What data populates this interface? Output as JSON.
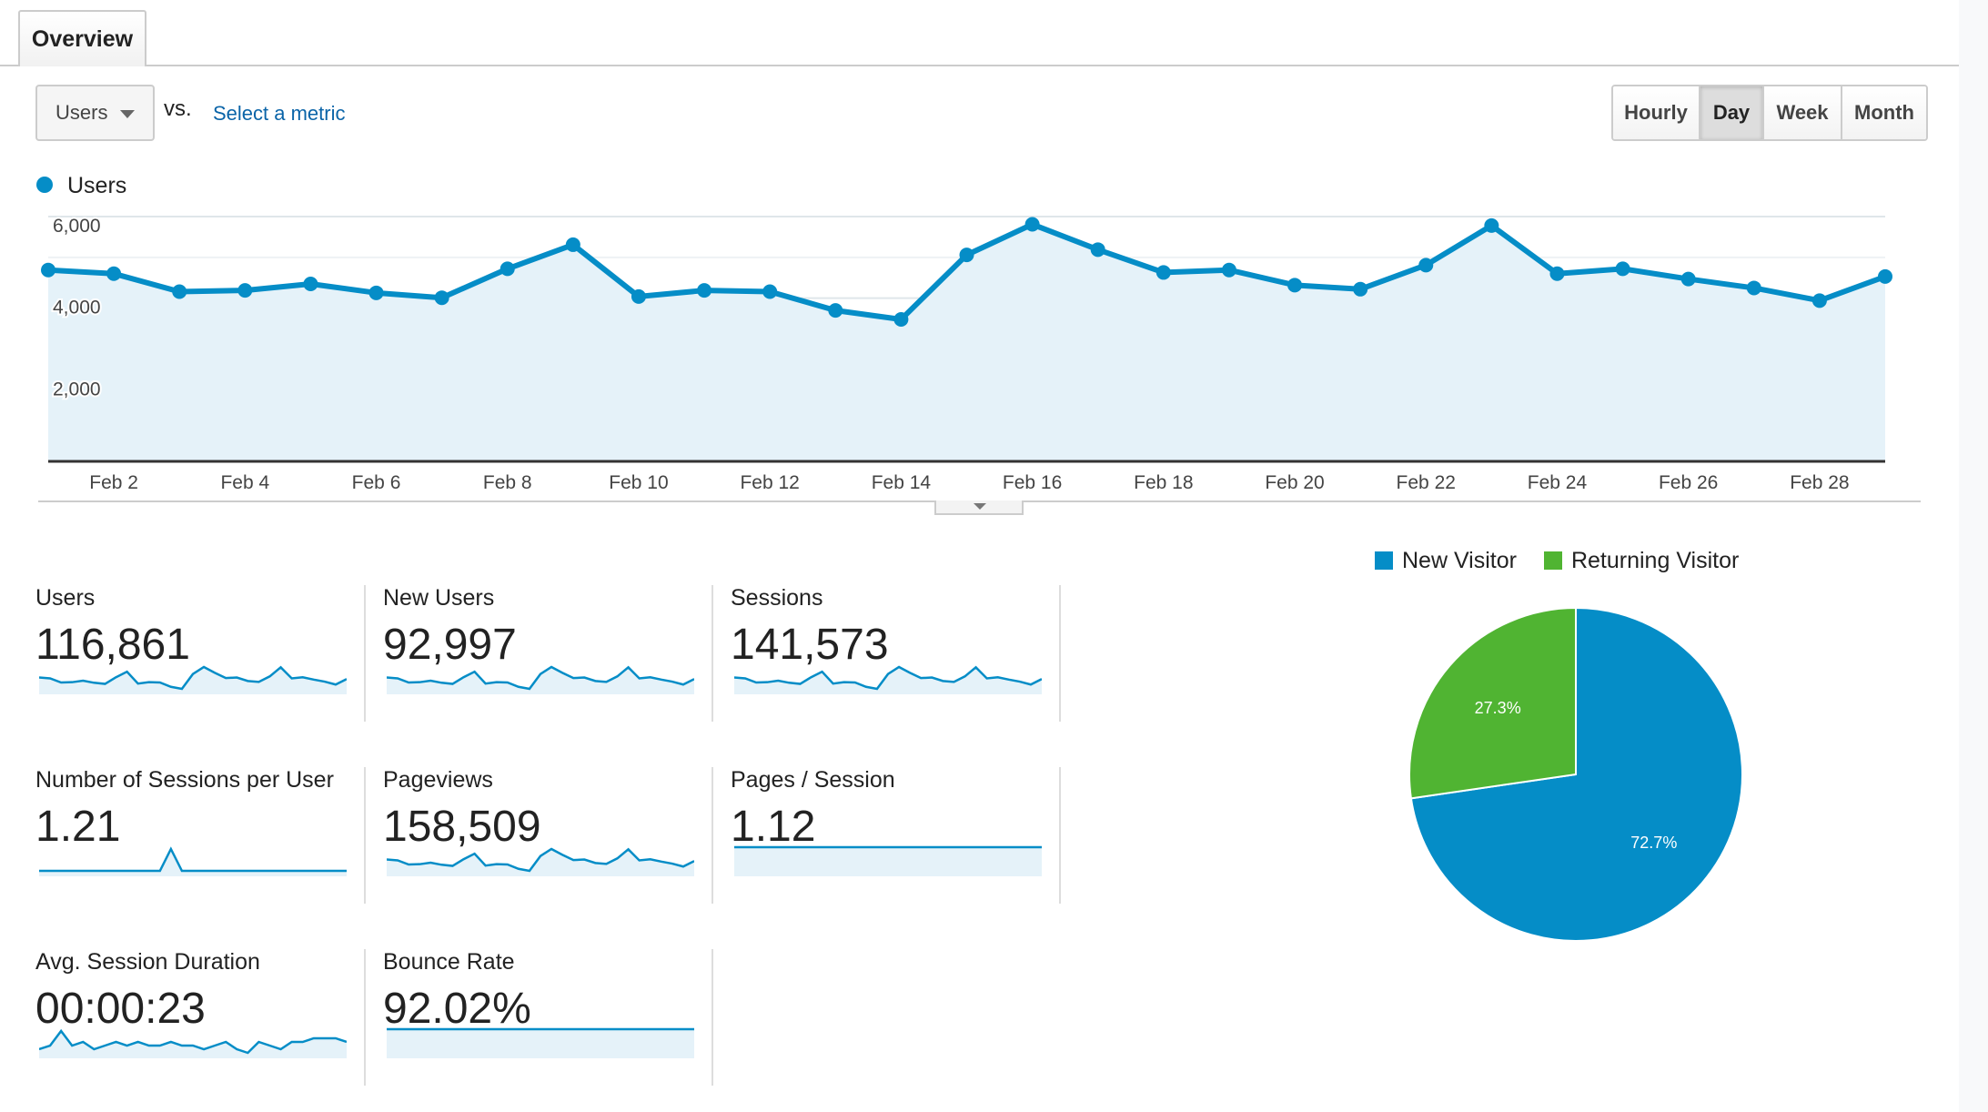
{
  "tabs": [
    {
      "label": "Overview",
      "active": true
    }
  ],
  "toolbar": {
    "metric_select": "Users",
    "vs_label": "vs.",
    "compare_link": "Select a metric",
    "granularity": [
      {
        "label": "Hourly",
        "active": false
      },
      {
        "label": "Day",
        "active": true
      },
      {
        "label": "Week",
        "active": false
      },
      {
        "label": "Month",
        "active": false
      }
    ]
  },
  "colors": {
    "primary": "#058dc7",
    "fill": "#e5f2f9",
    "secondary": "#50b432"
  },
  "chart_data": [
    {
      "type": "area",
      "legend": "Users",
      "series": [
        {
          "name": "Users",
          "values": [
            4690,
            4600,
            4160,
            4190,
            4350,
            4130,
            4010,
            4720,
            5310,
            4040,
            4190,
            4160,
            3700,
            3480,
            5060,
            5810,
            5190,
            4630,
            4690,
            4320,
            4220,
            4810,
            5780,
            4600,
            4720,
            4470,
            4250,
            3940,
            4530
          ]
        }
      ],
      "x": [
        "Feb 1",
        "Feb 2",
        "Feb 3",
        "Feb 4",
        "Feb 5",
        "Feb 6",
        "Feb 7",
        "Feb 8",
        "Feb 9",
        "Feb 10",
        "Feb 11",
        "Feb 12",
        "Feb 13",
        "Feb 14",
        "Feb 15",
        "Feb 16",
        "Feb 17",
        "Feb 18",
        "Feb 19",
        "Feb 20",
        "Feb 21",
        "Feb 22",
        "Feb 23",
        "Feb 24",
        "Feb 25",
        "Feb 26",
        "Feb 27",
        "Feb 28",
        "Feb 29"
      ],
      "x_tick_labels": [
        "Feb 2",
        "Feb 4",
        "Feb 6",
        "Feb 8",
        "Feb 10",
        "Feb 12",
        "Feb 14",
        "Feb 16",
        "Feb 18",
        "Feb 20",
        "Feb 22",
        "Feb 24",
        "Feb 26",
        "Feb 28"
      ],
      "y_tick_labels": [
        "6,000",
        "4,000",
        "2,000"
      ],
      "ylim": [
        0,
        6000
      ],
      "grid": true
    },
    {
      "type": "pie",
      "legend_placement": "top",
      "slices": [
        {
          "name": "New Visitor",
          "value": 72.7,
          "label": "72.7%",
          "color": "#058dc7"
        },
        {
          "name": "Returning Visitor",
          "value": 27.3,
          "label": "27.3%",
          "color": "#50b432"
        }
      ]
    }
  ],
  "scorecards": [
    {
      "label": "Users",
      "value": "116,861",
      "sparkline": [
        4690,
        4600,
        4160,
        4190,
        4350,
        4130,
        4010,
        4720,
        5310,
        4040,
        4190,
        4160,
        3700,
        3480,
        5060,
        5810,
        5190,
        4630,
        4690,
        4320,
        4220,
        4810,
        5780,
        4600,
        4720,
        4470,
        4250,
        3940,
        4530
      ]
    },
    {
      "label": "New Users",
      "value": "92,997",
      "sparkline": [
        4690,
        4600,
        4160,
        4190,
        4350,
        4130,
        4010,
        4720,
        5310,
        4040,
        4190,
        4160,
        3700,
        3480,
        5060,
        5810,
        5190,
        4630,
        4690,
        4320,
        4220,
        4810,
        5780,
        4600,
        4720,
        4470,
        4250,
        3940,
        4530
      ]
    },
    {
      "label": "Sessions",
      "value": "141,573",
      "sparkline": [
        4690,
        4600,
        4160,
        4190,
        4350,
        4130,
        4010,
        4720,
        5310,
        4040,
        4190,
        4160,
        3700,
        3480,
        5060,
        5810,
        5190,
        4630,
        4690,
        4320,
        4220,
        4810,
        5780,
        4600,
        4720,
        4470,
        4250,
        3940,
        4530
      ]
    },
    {
      "label": "Number of Sessions per User",
      "value": "1.21",
      "sparkline": [
        1.21,
        1.21,
        1.21,
        1.21,
        1.21,
        1.21,
        1.21,
        1.21,
        1.21,
        1.21,
        1.21,
        1.21,
        1.22,
        1.21,
        1.21,
        1.21,
        1.21,
        1.21,
        1.21,
        1.21,
        1.21,
        1.21,
        1.21,
        1.21,
        1.21,
        1.21,
        1.21,
        1.21,
        1.21
      ]
    },
    {
      "label": "Pageviews",
      "value": "158,509",
      "sparkline": [
        4690,
        4600,
        4160,
        4190,
        4350,
        4130,
        4010,
        4720,
        5310,
        4040,
        4190,
        4160,
        3700,
        3480,
        5060,
        5810,
        5190,
        4630,
        4690,
        4320,
        4220,
        4810,
        5780,
        4600,
        4720,
        4470,
        4250,
        3940,
        4530
      ]
    },
    {
      "label": "Pages / Session",
      "value": "1.12",
      "sparkline": [
        1.12,
        1.12,
        1.12,
        1.12,
        1.12,
        1.12,
        1.12,
        1.12,
        1.12,
        1.12,
        1.12,
        1.12,
        1.12,
        1.12,
        1.12,
        1.12,
        1.12,
        1.12,
        1.12,
        1.12,
        1.12,
        1.12,
        1.12,
        1.12,
        1.12,
        1.12,
        1.12,
        1.12,
        1.12
      ]
    },
    {
      "label": "Avg. Session Duration",
      "value": "00:00:23",
      "sparkline": [
        22,
        23,
        27,
        23,
        24,
        22,
        23,
        24,
        23,
        24,
        23,
        23,
        24,
        23,
        23,
        22,
        23,
        24,
        22,
        21,
        24,
        23,
        22,
        24,
        24,
        25,
        25,
        25,
        24
      ]
    },
    {
      "label": "Bounce Rate",
      "value": "92.02%",
      "sparkline": [
        92,
        92,
        92,
        92,
        92,
        92,
        92,
        92,
        92,
        92,
        92,
        92,
        92,
        92,
        92,
        92,
        92,
        92,
        92,
        92,
        92,
        92,
        92,
        92,
        92,
        92,
        92,
        92,
        92
      ]
    }
  ]
}
